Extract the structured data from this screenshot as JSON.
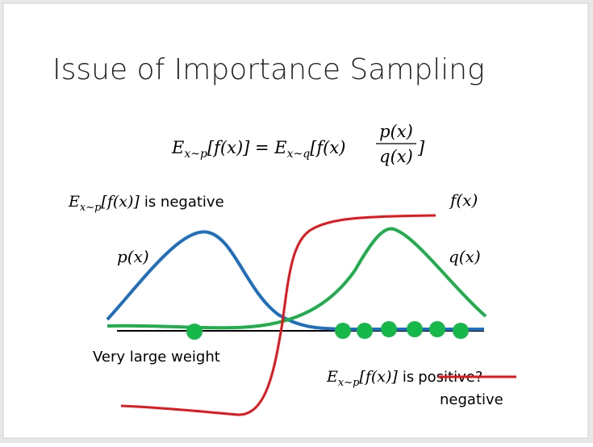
{
  "title": "Issue of Importance Sampling",
  "equation": {
    "lhs_e": "E",
    "lhs_sub": "x~p",
    "lhs_rest": "[f(x)] = E",
    "rhs_sub": "x~q",
    "rhs_rest": "[f(x)",
    "numerator": "p(x)",
    "denominator": "q(x)",
    "close": "]"
  },
  "top_label": {
    "e": "E",
    "sub": "x~p",
    "rest": "[f(x)]",
    "text": "is negative"
  },
  "curve_labels": {
    "f": "f(x)",
    "p": "p(x)",
    "q": "q(x)"
  },
  "weight_label": "Very large weight",
  "bottom_label": {
    "e": "E",
    "sub": "x~p",
    "rest": "[f(x)]",
    "is": "is",
    "struck": "positive?",
    "correction": "negative"
  }
}
